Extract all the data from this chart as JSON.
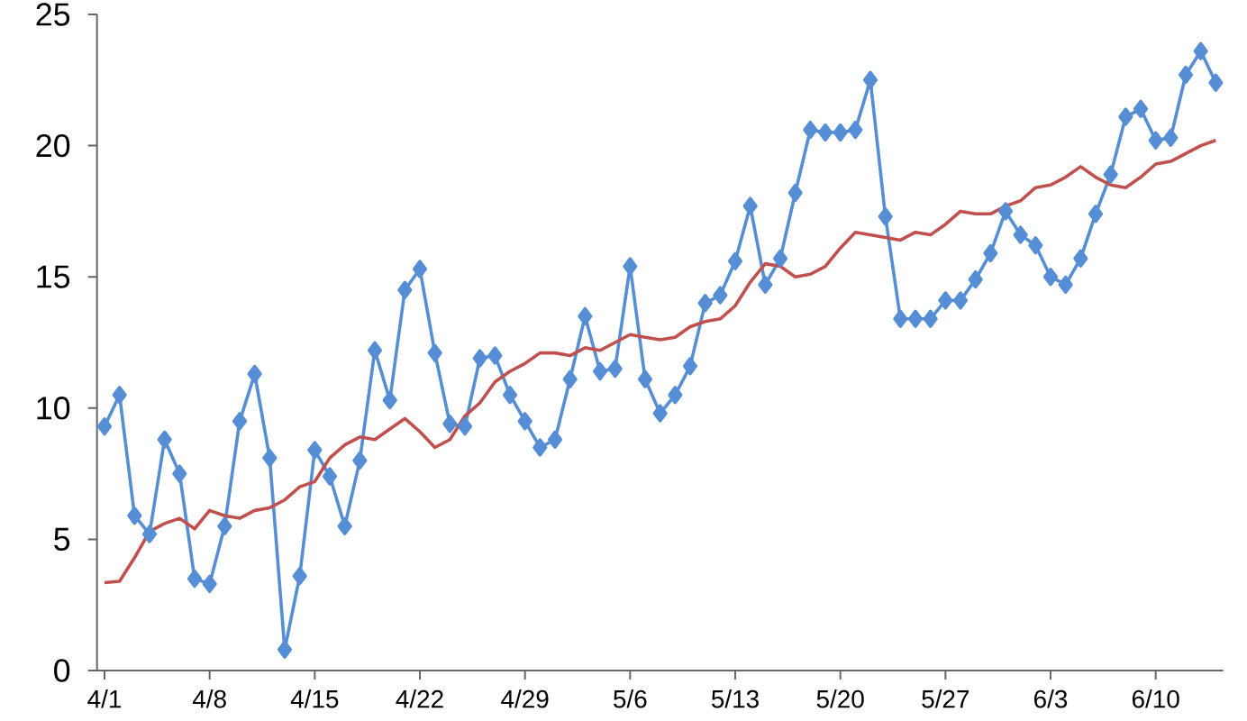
{
  "chart_data": {
    "type": "line",
    "categories": [
      "4/1",
      null,
      null,
      null,
      null,
      null,
      null,
      "4/8",
      null,
      null,
      null,
      null,
      null,
      null,
      "4/15",
      null,
      null,
      null,
      null,
      null,
      null,
      "4/22",
      null,
      null,
      null,
      null,
      null,
      null,
      "4/29",
      null,
      null,
      null,
      null,
      null,
      null,
      "5/6",
      null,
      null,
      null,
      null,
      null,
      null,
      "5/13",
      null,
      null,
      null,
      null,
      null,
      null,
      "5/20",
      null,
      null,
      null,
      null,
      null,
      null,
      "5/27",
      null,
      null,
      null,
      null,
      null,
      null,
      "6/3",
      null,
      null,
      null,
      null,
      null,
      null,
      "6/10",
      null,
      null,
      null,
      null
    ],
    "ylim": [
      0,
      25
    ],
    "yticks": [
      0,
      5,
      10,
      15,
      20,
      25
    ],
    "series": [
      {
        "color": "#558ed5",
        "marker": "diamond",
        "values": [
          9.3,
          10.5,
          5.9,
          5.2,
          8.8,
          7.5,
          3.5,
          3.3,
          5.5,
          9.5,
          11.3,
          8.1,
          0.8,
          3.6,
          8.4,
          7.4,
          5.5,
          8.0,
          12.2,
          10.3,
          14.5,
          15.3,
          12.1,
          9.4,
          9.3,
          11.9,
          12.0,
          10.5,
          9.5,
          8.5,
          8.8,
          11.1,
          13.5,
          11.4,
          11.5,
          15.4,
          11.1,
          9.8,
          10.5,
          11.6,
          14.0,
          14.3,
          15.6,
          17.7,
          14.7,
          15.7,
          18.2,
          20.6,
          20.5,
          20.5,
          20.6,
          22.5,
          17.3,
          13.4,
          13.4,
          13.4,
          14.1,
          14.1,
          14.9,
          15.9,
          17.5,
          16.6,
          16.2,
          15.0,
          14.7,
          15.7,
          17.4,
          18.9,
          21.1,
          21.4,
          20.2,
          20.3,
          22.7,
          23.6,
          22.4
        ]
      },
      {
        "color": "#c0504d",
        "marker": "none",
        "values": [
          3.35,
          3.4,
          4.3,
          5.3,
          5.6,
          5.8,
          5.4,
          6.1,
          5.9,
          5.8,
          6.1,
          6.2,
          6.5,
          7.0,
          7.2,
          8.1,
          8.6,
          8.9,
          8.8,
          9.2,
          9.6,
          9.1,
          8.5,
          8.8,
          9.7,
          10.2,
          11.0,
          11.4,
          11.7,
          12.1,
          12.1,
          12.0,
          12.3,
          12.2,
          12.5,
          12.8,
          12.7,
          12.6,
          12.7,
          13.1,
          13.3,
          13.4,
          13.9,
          14.8,
          15.5,
          15.4,
          15.0,
          15.1,
          15.4,
          16.1,
          16.7,
          16.6,
          16.5,
          16.4,
          16.7,
          16.6,
          17.0,
          17.5,
          17.4,
          17.4,
          17.7,
          17.9,
          18.4,
          18.5,
          18.8,
          19.2,
          18.8,
          18.5,
          18.4,
          18.8,
          19.3,
          19.4,
          19.7,
          20.0,
          20.2
        ]
      }
    ]
  }
}
